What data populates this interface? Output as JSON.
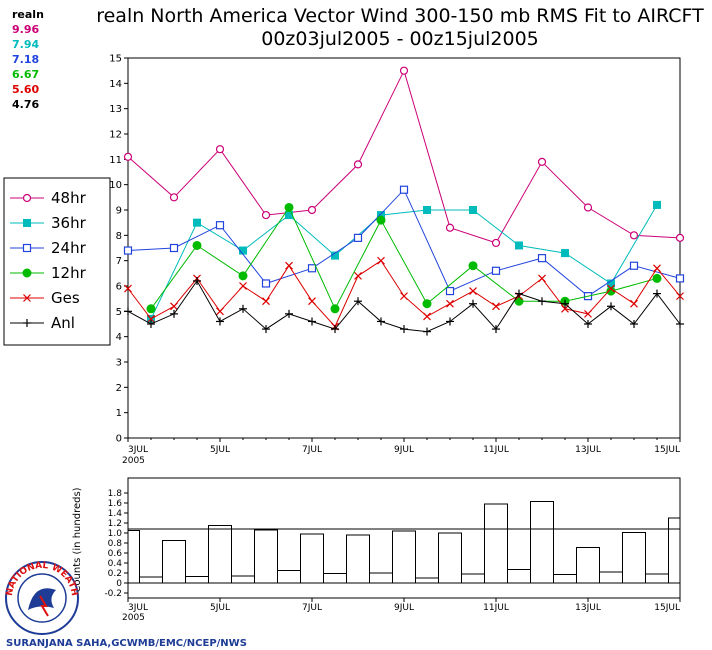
{
  "header": {
    "title_line1": "realn North America Vector Wind 300-150 mb RMS Fit to AIRCFT",
    "title_line2": "00z03jul2005 - 00z15jul2005"
  },
  "stats": {
    "label": "realn",
    "items": [
      {
        "value": "9.96",
        "color": "#cc0077"
      },
      {
        "value": "7.94",
        "color": "#00bbbb"
      },
      {
        "value": "7.18",
        "color": "#2244dd"
      },
      {
        "value": "6.67",
        "color": "#00bb00"
      },
      {
        "value": "5.60",
        "color": "#dd0000"
      },
      {
        "value": "4.76",
        "color": "#000000"
      }
    ]
  },
  "legend": {
    "items": [
      {
        "label": "48hr",
        "color": "#cc0077",
        "marker": "open-circle"
      },
      {
        "label": "36hr",
        "color": "#00bbbb",
        "marker": "filled-square"
      },
      {
        "label": "24hr",
        "color": "#2244dd",
        "marker": "open-square"
      },
      {
        "label": "12hr",
        "color": "#00bb00",
        "marker": "filled-circle"
      },
      {
        "label": "Ges",
        "color": "#dd0000",
        "marker": "x"
      },
      {
        "label": "Anl",
        "color": "#000000",
        "marker": "plus"
      }
    ]
  },
  "credit": "SURANJANA SAHA,GCWMB/EMC/NCEP/NWS",
  "logo_text": "NATIONAL WEATHER SERVICE",
  "chart_data": [
    {
      "type": "line",
      "ylim": [
        0,
        15
      ],
      "yticks": [
        0,
        1,
        2,
        3,
        4,
        5,
        6,
        7,
        8,
        9,
        10,
        11,
        12,
        13,
        14,
        15
      ],
      "xlim": [
        0,
        24
      ],
      "xticks": [
        {
          "x": 0,
          "label": "3JUL",
          "sub": "2005"
        },
        {
          "x": 4,
          "label": "5JUL"
        },
        {
          "x": 8,
          "label": "7JUL"
        },
        {
          "x": 12,
          "label": "9JUL"
        },
        {
          "x": 16,
          "label": "11JUL"
        },
        {
          "x": 20,
          "label": "13JUL"
        },
        {
          "x": 24,
          "label": "15JUL"
        }
      ],
      "series": [
        {
          "name": "48hr",
          "color": "#cc0077",
          "marker": "open-circle",
          "x": [
            0,
            2,
            4,
            6,
            8,
            10,
            12,
            14,
            16,
            18,
            20,
            22,
            24
          ],
          "y": [
            11.1,
            9.5,
            11.4,
            8.8,
            9.0,
            10.8,
            14.5,
            8.3,
            7.7,
            10.9,
            9.1,
            8.0,
            7.9
          ]
        },
        {
          "name": "36hr",
          "color": "#00bbbb",
          "marker": "filled-square",
          "x": [
            1,
            3,
            5,
            7,
            9,
            11,
            13,
            15,
            17,
            19,
            21,
            23
          ],
          "y": [
            4.7,
            8.5,
            7.4,
            8.8,
            7.2,
            8.8,
            9.0,
            9.0,
            7.6,
            7.3,
            6.1,
            9.2
          ]
        },
        {
          "name": "24hr",
          "color": "#2244dd",
          "marker": "open-square",
          "x": [
            0,
            2,
            4,
            6,
            8,
            10,
            12,
            14,
            16,
            18,
            20,
            22,
            24
          ],
          "y": [
            7.4,
            7.5,
            8.4,
            6.1,
            6.7,
            7.9,
            9.8,
            5.8,
            6.6,
            7.1,
            5.6,
            6.8,
            6.3
          ]
        },
        {
          "name": "12hr",
          "color": "#00bb00",
          "marker": "filled-circle",
          "x": [
            1,
            3,
            5,
            7,
            9,
            11,
            13,
            15,
            17,
            19,
            21,
            23
          ],
          "y": [
            5.1,
            7.6,
            6.4,
            9.1,
            5.1,
            8.6,
            5.3,
            6.8,
            5.4,
            5.4,
            5.8,
            6.3
          ]
        },
        {
          "name": "Ges",
          "color": "#dd0000",
          "marker": "x",
          "x": [
            0,
            1,
            2,
            3,
            4,
            5,
            6,
            7,
            8,
            9,
            10,
            11,
            12,
            13,
            14,
            15,
            16,
            17,
            18,
            19,
            20,
            21,
            22,
            23,
            24
          ],
          "y": [
            5.9,
            4.7,
            5.2,
            6.3,
            5.0,
            6.0,
            5.4,
            6.8,
            5.4,
            4.4,
            6.4,
            7.0,
            5.6,
            4.8,
            5.3,
            5.8,
            5.2,
            5.6,
            6.3,
            5.1,
            4.9,
            5.9,
            5.3,
            6.7,
            5.6
          ]
        },
        {
          "name": "Anl",
          "color": "#000000",
          "marker": "plus",
          "x": [
            0,
            1,
            2,
            3,
            4,
            5,
            6,
            7,
            8,
            9,
            10,
            11,
            12,
            13,
            14,
            15,
            16,
            17,
            18,
            19,
            20,
            21,
            22,
            23,
            24
          ],
          "y": [
            5.0,
            4.5,
            4.9,
            6.2,
            4.6,
            5.1,
            4.3,
            4.9,
            4.6,
            4.3,
            5.4,
            4.6,
            4.3,
            4.2,
            4.6,
            5.3,
            4.3,
            5.7,
            5.4,
            5.3,
            4.5,
            5.2,
            4.5,
            5.7,
            4.5
          ]
        }
      ]
    },
    {
      "type": "bar",
      "ylabel": "Counts (in hundreds)",
      "ylim": [
        -0.3,
        2.1
      ],
      "yticks": [
        -0.2,
        0,
        0.2,
        0.4,
        0.6,
        0.8,
        1.0,
        1.2,
        1.4,
        1.6,
        1.8
      ],
      "reference_line": 1.08,
      "x": [
        0,
        1,
        2,
        3,
        4,
        5,
        6,
        7,
        8,
        9,
        10,
        11,
        12,
        13,
        14,
        15,
        16,
        17,
        18,
        19,
        20,
        21,
        22,
        23,
        24
      ],
      "values": [
        1.05,
        0.12,
        0.85,
        0.13,
        1.15,
        0.14,
        1.06,
        0.25,
        0.98,
        0.19,
        0.96,
        0.2,
        1.04,
        0.1,
        1.0,
        0.18,
        1.58,
        0.27,
        1.63,
        0.17,
        0.71,
        0.22,
        1.01,
        0.18,
        1.3
      ]
    }
  ]
}
